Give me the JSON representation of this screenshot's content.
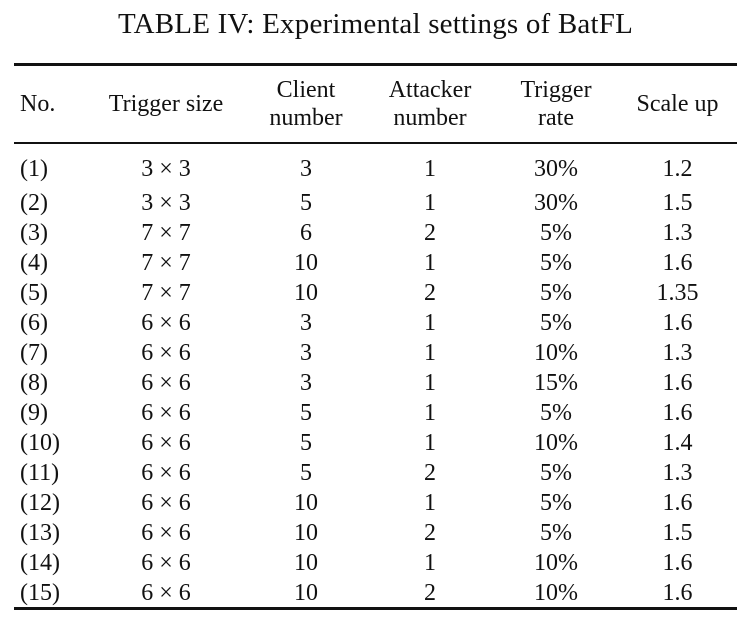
{
  "caption": "TABLE IV: Experimental settings of BatFL",
  "table": {
    "headers": [
      [
        "No."
      ],
      [
        "Trigger size"
      ],
      [
        "Client",
        "number"
      ],
      [
        "Attacker",
        "number"
      ],
      [
        "Trigger",
        "rate"
      ],
      [
        "Scale up"
      ]
    ],
    "rows": [
      [
        "(1)",
        "3 × 3",
        "3",
        "1",
        "30%",
        "1.2"
      ],
      [
        "(2)",
        "3 × 3",
        "5",
        "1",
        "30%",
        "1.5"
      ],
      [
        "(3)",
        "7 × 7",
        "6",
        "2",
        "5%",
        "1.3"
      ],
      [
        "(4)",
        "7 × 7",
        "10",
        "1",
        "5%",
        "1.6"
      ],
      [
        "(5)",
        "7 × 7",
        "10",
        "2",
        "5%",
        "1.35"
      ],
      [
        "(6)",
        "6 × 6",
        "3",
        "1",
        "5%",
        "1.6"
      ],
      [
        "(7)",
        "6 × 6",
        "3",
        "1",
        "10%",
        "1.3"
      ],
      [
        "(8)",
        "6 × 6",
        "3",
        "1",
        "15%",
        "1.6"
      ],
      [
        "(9)",
        "6 × 6",
        "5",
        "1",
        "5%",
        "1.6"
      ],
      [
        "(10)",
        "6 × 6",
        "5",
        "1",
        "10%",
        "1.4"
      ],
      [
        "(11)",
        "6 × 6",
        "5",
        "2",
        "5%",
        "1.3"
      ],
      [
        "(12)",
        "6 × 6",
        "10",
        "1",
        "5%",
        "1.6"
      ],
      [
        "(13)",
        "6 × 6",
        "10",
        "2",
        "5%",
        "1.5"
      ],
      [
        "(14)",
        "6 × 6",
        "10",
        "1",
        "10%",
        "1.6"
      ],
      [
        "(15)",
        "6 × 6",
        "10",
        "2",
        "10%",
        "1.6"
      ]
    ]
  }
}
